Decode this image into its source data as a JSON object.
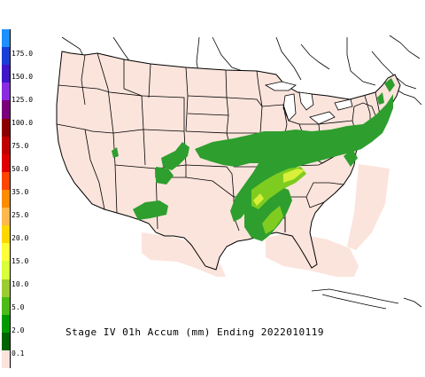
{
  "caption": "Stage IV 01h Accum (mm) Ending 2022010119",
  "legend": {
    "labels": [
      "175.0",
      "150.0",
      "125.0",
      "100.0",
      "75.0",
      "50.0",
      "35.0",
      "25.0",
      "20.0",
      "15.0",
      "10.0",
      "5.0",
      "2.0",
      "0.1"
    ],
    "colors": [
      "#1e90ff",
      "#1c3ed8",
      "#3f16c8",
      "#8a2be2",
      "#7b007b",
      "#8b0000",
      "#c00000",
      "#e00000",
      "#ff4500",
      "#ff8c00",
      "#ffb84d",
      "#ffd700",
      "#ffff3a",
      "#d8ff3a",
      "#9acd32",
      "#4cbb17",
      "#009a00",
      "#006400",
      "#fbe4dc"
    ]
  },
  "colors": {
    "land": "#fbe4dc",
    "precip_light": "#2e9e2e",
    "precip_mid": "#7fcc20",
    "precip_high": "#d8f03a",
    "boundary": "#000000"
  }
}
